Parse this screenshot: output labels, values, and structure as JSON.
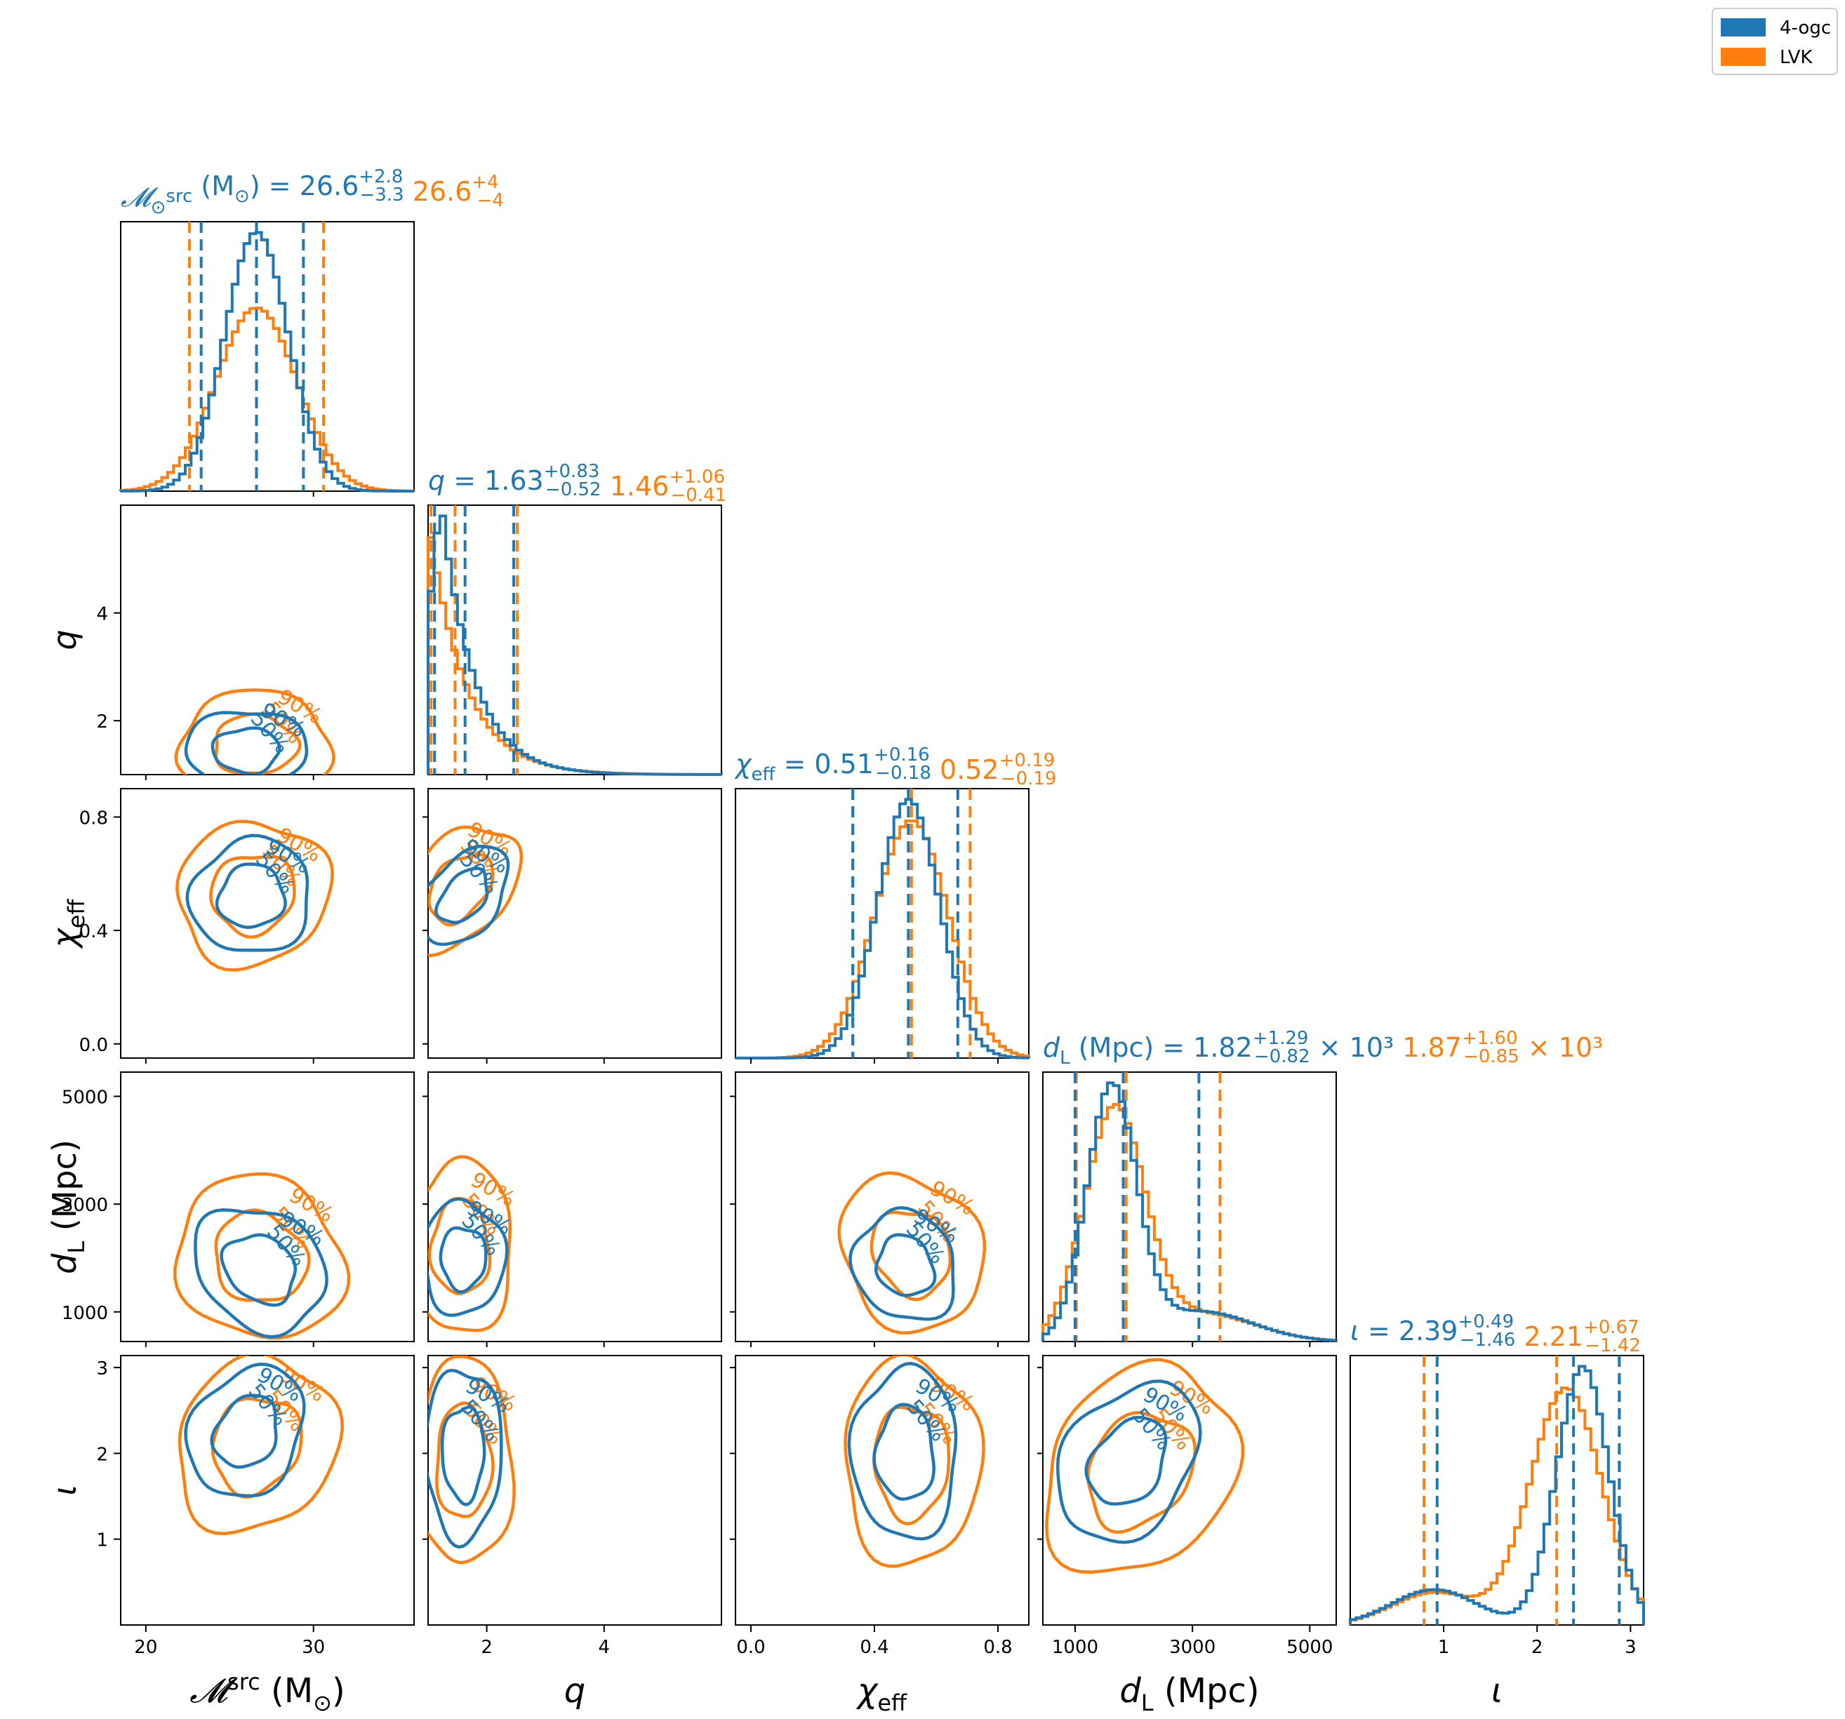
{
  "colors": {
    "series_a": "#1f77b4",
    "series_b": "#ff7f0e",
    "axis": "#000000"
  },
  "legend": {
    "placement": "top-right",
    "entries": [
      {
        "label": "4-ogc",
        "color": "#1f77b4"
      },
      {
        "label": "LVK",
        "color": "#ff7f0e"
      }
    ]
  },
  "chart_data": {
    "type": "corner",
    "series": [
      "4-ogc",
      "LVK"
    ],
    "contour_levels": [
      "50%",
      "90%"
    ],
    "params": [
      {
        "key": "mc",
        "label": "𝓜",
        "label_sup": "src",
        "label_tail": " (M",
        "label_sub": "⊙",
        "label_close": ")",
        "range": [
          18.5,
          36.0
        ],
        "ticks": [
          20,
          30
        ],
        "tick_labels": [
          "20",
          "30"
        ],
        "title": {
          "name": "𝓜",
          "name_sup": "src",
          "name_tail": " (M",
          "name_sub": "⊙",
          "name_close": ") = ",
          "a": {
            "median": "26.6",
            "plus": "+2.8",
            "minus": "−3.3"
          },
          "b": {
            "median": "26.6",
            "plus": "+4",
            "minus": "−4"
          }
        },
        "dist": {
          "a": {
            "median": 26.6,
            "lo": 23.3,
            "hi": 29.4,
            "sd": 1.9
          },
          "b": {
            "median": 26.6,
            "lo": 22.6,
            "hi": 30.6,
            "sd": 2.4
          }
        }
      },
      {
        "key": "q",
        "label": "q",
        "label_sup": "",
        "label_tail": "",
        "label_sub": "",
        "label_close": "",
        "range": [
          1.0,
          6.0
        ],
        "ticks": [
          2,
          4
        ],
        "tick_labels": [
          "2",
          "4"
        ],
        "title": {
          "name": "q",
          "name_sup": "",
          "name_tail": " = ",
          "name_sub": "",
          "name_close": "",
          "a": {
            "median": "1.63",
            "plus": "+0.83",
            "minus": "−0.52"
          },
          "b": {
            "median": "1.46",
            "plus": "+1.06",
            "minus": "−0.41"
          }
        },
        "dist": {
          "a": {
            "median": 1.63,
            "lo": 1.11,
            "hi": 2.46,
            "sd": 0.45
          },
          "b": {
            "median": 1.46,
            "lo": 1.05,
            "hi": 2.52,
            "sd": 0.5
          }
        }
      },
      {
        "key": "chi",
        "label": "χ",
        "label_sup": "",
        "label_tail": "",
        "label_sub": "eff",
        "label_close": "",
        "range": [
          -0.05,
          0.9
        ],
        "ticks": [
          0.0,
          0.4,
          0.8
        ],
        "tick_labels": [
          "0.0",
          "0.4",
          "0.8"
        ],
        "title": {
          "name": "χ",
          "name_sup": "",
          "name_tail": " = ",
          "name_sub": "eff",
          "name_close": "",
          "a": {
            "median": "0.51",
            "plus": "+0.16",
            "minus": "−0.18"
          },
          "b": {
            "median": "0.52",
            "plus": "+0.19",
            "minus": "−0.19"
          }
        },
        "dist": {
          "a": {
            "median": 0.51,
            "lo": 0.33,
            "hi": 0.67,
            "sd": 0.1
          },
          "b": {
            "median": 0.52,
            "lo": 0.33,
            "hi": 0.71,
            "sd": 0.12
          }
        }
      },
      {
        "key": "dl",
        "label": "d",
        "label_sup": "",
        "label_tail": " (Mpc)",
        "label_sub": "L",
        "label_close": "",
        "range": [
          450,
          5450
        ],
        "ticks": [
          1000,
          3000,
          5000
        ],
        "tick_labels": [
          "1000",
          "3000",
          "5000"
        ],
        "title": {
          "name": "d",
          "name_sup": "",
          "name_tail": " (Mpc) = ",
          "name_sub": "L",
          "name_close": "",
          "a": {
            "median": "1.82",
            "plus": "+1.29",
            "minus": "−0.82",
            "suffix": " × 10³"
          },
          "b": {
            "median": "1.87",
            "plus": "+1.60",
            "minus": "−0.85",
            "suffix": " × 10³"
          }
        },
        "dist": {
          "a": {
            "median": 1820,
            "lo": 1000,
            "hi": 3110,
            "sd": 560
          },
          "b": {
            "median": 1870,
            "lo": 1020,
            "hi": 3470,
            "sd": 680
          }
        }
      },
      {
        "key": "iota",
        "label": "ι",
        "label_sup": "",
        "label_tail": "",
        "label_sub": "",
        "label_close": "",
        "range": [
          0.0,
          3.14
        ],
        "ticks": [
          1,
          2,
          3
        ],
        "tick_labels": [
          "1",
          "2",
          "3"
        ],
        "title": {
          "name": "ι",
          "name_sup": "",
          "name_tail": " = ",
          "name_sub": "",
          "name_close": "",
          "a": {
            "median": "2.39",
            "plus": "+0.49",
            "minus": "−1.46"
          },
          "b": {
            "median": "2.21",
            "plus": "+0.67",
            "minus": "−1.42"
          }
        },
        "dist": {
          "a": {
            "median": 2.39,
            "lo": 0.93,
            "hi": 2.88,
            "sd": 0.28
          },
          "b": {
            "median": 2.21,
            "lo": 0.79,
            "hi": 2.88,
            "sd": 0.38
          }
        }
      }
    ],
    "pairs": [
      {
        "x": "mc",
        "y": "q",
        "a": {
          "cx": 26.0,
          "cy": 1.45,
          "rx": 3.6,
          "ry": 0.75,
          "rot": 0
        },
        "b": {
          "cx": 26.5,
          "cy": 1.55,
          "rx": 4.5,
          "ry": 1.0,
          "rot": 0
        },
        "label_pos": {
          "a": [
            "50%",
            "90%"
          ],
          "b": [
            "50%",
            "90%"
          ]
        }
      },
      {
        "x": "mc",
        "y": "chi",
        "a": {
          "cx": 26.3,
          "cy": 0.52,
          "rx": 3.6,
          "ry": 0.2,
          "rot": -25
        },
        "b": {
          "cx": 26.4,
          "cy": 0.53,
          "rx": 4.6,
          "ry": 0.25,
          "rot": -25
        }
      },
      {
        "x": "mc",
        "y": "dl",
        "a": {
          "cx": 26.8,
          "cy": 1800,
          "rx": 4.2,
          "ry": 1050,
          "rot": 38
        },
        "b": {
          "cx": 26.8,
          "cy": 2000,
          "rx": 5.2,
          "ry": 1450,
          "rot": 38
        }
      },
      {
        "x": "mc",
        "y": "iota",
        "a": {
          "cx": 26.0,
          "cy": 2.25,
          "rx": 3.2,
          "ry": 0.8,
          "rot": 30
        },
        "b": {
          "cx": 26.6,
          "cy": 2.1,
          "rx": 4.6,
          "ry": 1.05,
          "rot": 30
        }
      },
      {
        "x": "q",
        "y": "chi",
        "a": {
          "cx": 1.6,
          "cy": 0.52,
          "rx": 0.6,
          "ry": 0.2,
          "rot": 40
        },
        "b": {
          "cx": 1.55,
          "cy": 0.55,
          "rx": 0.8,
          "ry": 0.25,
          "rot": 40
        }
      },
      {
        "x": "q",
        "y": "dl",
        "a": {
          "cx": 1.6,
          "cy": 2000,
          "rx": 0.7,
          "ry": 1050,
          "rot": 0
        },
        "b": {
          "cx": 1.55,
          "cy": 2200,
          "rx": 0.9,
          "ry": 1600,
          "rot": 0
        }
      },
      {
        "x": "q",
        "y": "iota",
        "a": {
          "cx": 1.6,
          "cy": 2.0,
          "rx": 0.65,
          "ry": 1.0,
          "rot": 0
        },
        "b": {
          "cx": 1.6,
          "cy": 1.9,
          "rx": 0.85,
          "ry": 1.2,
          "rot": 0
        }
      },
      {
        "x": "chi",
        "y": "dl",
        "a": {
          "cx": 0.5,
          "cy": 1850,
          "rx": 0.16,
          "ry": 1050,
          "rot": -30
        },
        "b": {
          "cx": 0.52,
          "cy": 2100,
          "rx": 0.22,
          "ry": 1500,
          "rot": -30
        }
      },
      {
        "x": "chi",
        "y": "iota",
        "a": {
          "cx": 0.5,
          "cy": 2.0,
          "rx": 0.17,
          "ry": 1.0,
          "rot": 0
        },
        "b": {
          "cx": 0.52,
          "cy": 1.9,
          "rx": 0.22,
          "ry": 1.2,
          "rot": 0
        }
      },
      {
        "x": "dl",
        "y": "iota",
        "a": {
          "cx": 1900,
          "cy": 1.9,
          "rx": 1050,
          "ry": 1.0,
          "rot": 35
        },
        "b": {
          "cx": 2100,
          "cy": 1.8,
          "rx": 1500,
          "ry": 1.3,
          "rot": 35
        }
      }
    ]
  }
}
